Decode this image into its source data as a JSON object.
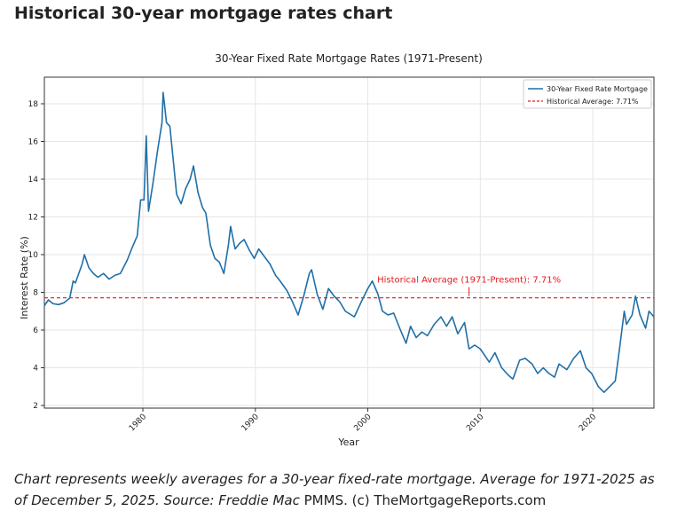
{
  "page_title": "Historical 30-year mortgage rates chart",
  "chart_data": {
    "type": "line",
    "title": "30-Year Fixed Rate Mortgage Rates (1971-Present)",
    "xlabel": "Year",
    "ylabel": "Interest Rate (%)",
    "xlim": [
      1971.24,
      2025.44
    ],
    "ylim": [
      1.86,
      19.41
    ],
    "xticks": [
      1980,
      1990,
      2000,
      2010,
      2020
    ],
    "yticks": [
      2,
      4,
      6,
      8,
      10,
      12,
      14,
      16,
      18
    ],
    "grid": true,
    "legend": "upper right",
    "x": [
      1971.25,
      1971.6,
      1972.0,
      1972.5,
      1973.0,
      1973.5,
      1973.8,
      1974.0,
      1974.6,
      1974.8,
      1975.2,
      1975.6,
      1976.0,
      1976.5,
      1977.0,
      1977.5,
      1978.0,
      1978.6,
      1979.0,
      1979.5,
      1979.8,
      1980.1,
      1980.3,
      1980.5,
      1980.9,
      1981.3,
      1981.7,
      1981.8,
      1982.1,
      1982.4,
      1982.7,
      1983.0,
      1983.4,
      1983.8,
      1984.2,
      1984.5,
      1984.9,
      1985.3,
      1985.6,
      1986.0,
      1986.4,
      1986.8,
      1987.2,
      1987.6,
      1987.8,
      1988.2,
      1988.6,
      1989.0,
      1989.5,
      1989.9,
      1990.3,
      1990.8,
      1991.3,
      1991.8,
      1992.2,
      1992.8,
      1993.3,
      1993.8,
      1994.3,
      1994.8,
      1995.0,
      1995.5,
      1996.0,
      1996.5,
      1997.0,
      1997.5,
      1998.0,
      1998.8,
      1999.5,
      2000.0,
      2000.4,
      2000.9,
      2001.3,
      2001.8,
      2002.3,
      2002.9,
      2003.4,
      2003.8,
      2004.3,
      2004.8,
      2005.3,
      2005.9,
      2006.5,
      2007.0,
      2007.5,
      2008.0,
      2008.6,
      2009.0,
      2009.5,
      2010.0,
      2010.8,
      2011.3,
      2011.9,
      2012.5,
      2012.9,
      2013.5,
      2014.0,
      2014.6,
      2015.1,
      2015.6,
      2016.1,
      2016.6,
      2017.0,
      2017.7,
      2018.3,
      2018.9,
      2019.4,
      2019.9,
      2020.5,
      2021.0,
      2021.5,
      2022.0,
      2022.4,
      2022.8,
      2023.0,
      2023.5,
      2023.8,
      2024.2,
      2024.7,
      2025.0,
      2025.44
    ],
    "series": [
      {
        "name": "30-Year Fixed Rate Mortgage",
        "color": "#1f6fa8",
        "values": [
          7.3,
          7.6,
          7.4,
          7.35,
          7.45,
          7.7,
          8.6,
          8.5,
          9.5,
          10.0,
          9.3,
          9.0,
          8.8,
          9.0,
          8.7,
          8.9,
          9.0,
          9.7,
          10.3,
          11.0,
          12.9,
          12.9,
          16.3,
          12.3,
          13.8,
          15.5,
          17.0,
          18.6,
          17.0,
          16.8,
          15.0,
          13.2,
          12.7,
          13.5,
          14.0,
          14.7,
          13.3,
          12.5,
          12.2,
          10.5,
          9.8,
          9.6,
          9.0,
          10.5,
          11.5,
          10.3,
          10.6,
          10.8,
          10.2,
          9.8,
          10.3,
          9.9,
          9.5,
          8.9,
          8.6,
          8.1,
          7.5,
          6.8,
          7.8,
          9.0,
          9.2,
          7.9,
          7.1,
          8.2,
          7.8,
          7.5,
          7.0,
          6.7,
          7.6,
          8.2,
          8.6,
          7.9,
          7.0,
          6.8,
          6.9,
          6.0,
          5.3,
          6.2,
          5.6,
          5.9,
          5.7,
          6.3,
          6.7,
          6.2,
          6.7,
          5.8,
          6.4,
          5.0,
          5.2,
          5.0,
          4.3,
          4.8,
          4.0,
          3.6,
          3.4,
          4.4,
          4.5,
          4.2,
          3.7,
          4.0,
          3.7,
          3.5,
          4.2,
          3.9,
          4.5,
          4.9,
          4.0,
          3.7,
          3.0,
          2.7,
          3.0,
          3.3,
          5.1,
          7.0,
          6.3,
          6.8,
          7.8,
          6.8,
          6.1,
          7.0,
          6.7
        ]
      }
    ],
    "average": {
      "name": "Historical Average: 7.71%",
      "value": 7.71,
      "color": "#e41a1c"
    },
    "annotation": "Historical Average (1971-Present): 7.71%"
  },
  "caption": "Chart represents weekly averages for a 30-year fixed-rate mortgage. Average for 1971-2025 as of December 5, 2025. Source: Freddie Mac",
  "caption_source": "PMMS. (c) TheMortgageReports.com"
}
